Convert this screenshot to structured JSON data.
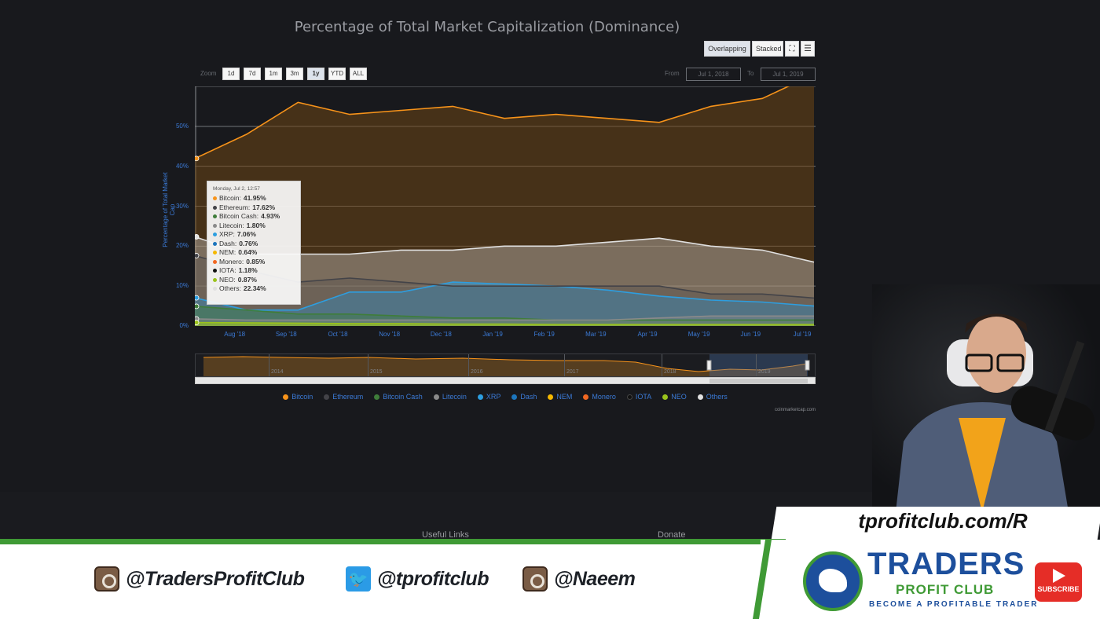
{
  "chart": {
    "title": "Percentage of Total Market Capitalization (Dominance)",
    "modes": [
      "Overlapping",
      "Stacked"
    ],
    "zoom_label": "Zoom",
    "zoom_buttons": [
      "1d",
      "7d",
      "1m",
      "3m",
      "1y",
      "YTD",
      "ALL"
    ],
    "from_label": "From",
    "from_value": "Jul 1, 2018",
    "to_label": "To",
    "to_value": "Jul 1, 2019",
    "y_title": "Percentage of Total Market Cap",
    "y_ticks": [
      "50%",
      "40%",
      "30%",
      "20%",
      "10%",
      "0%"
    ],
    "x_ticks": [
      "Aug '18",
      "Sep '18",
      "Oct '18",
      "Nov '18",
      "Dec '18",
      "Jan '19",
      "Feb '19",
      "Mar '19",
      "Apr '19",
      "May '19",
      "Jun '19",
      "Jul '19"
    ],
    "navigator_years": [
      "2014",
      "2015",
      "2016",
      "2017",
      "2018",
      "2019"
    ],
    "credit": "coinmarketcap.com",
    "tooltip": {
      "date": "Monday, Jul 2, 12:57",
      "rows": [
        {
          "name": "Bitcoin",
          "value": "41.95%",
          "color": "#f7931a"
        },
        {
          "name": "Ethereum",
          "value": "17.62%",
          "color": "#434348"
        },
        {
          "name": "Bitcoin Cash",
          "value": "4.93%",
          "color": "#3f7d3a"
        },
        {
          "name": "Litecoin",
          "value": "1.80%",
          "color": "#8a8a8a"
        },
        {
          "name": "XRP",
          "value": "7.06%",
          "color": "#2d9ee0"
        },
        {
          "name": "Dash",
          "value": "0.76%",
          "color": "#1c75bc"
        },
        {
          "name": "NEM",
          "value": "0.64%",
          "color": "#f5b800"
        },
        {
          "name": "Monero",
          "value": "0.85%",
          "color": "#f26822"
        },
        {
          "name": "IOTA",
          "value": "1.18%",
          "color": "#111111"
        },
        {
          "name": "NEO",
          "value": "0.87%",
          "color": "#9ac31c"
        },
        {
          "name": "Others",
          "value": "22.34%",
          "color": "#e0e0e0"
        }
      ]
    },
    "legend": [
      {
        "name": "Bitcoin",
        "color": "#f7931a"
      },
      {
        "name": "Ethereum",
        "color": "#434348"
      },
      {
        "name": "Bitcoin Cash",
        "color": "#3f7d3a"
      },
      {
        "name": "Litecoin",
        "color": "#8a8a8a"
      },
      {
        "name": "XRP",
        "color": "#2d9ee0"
      },
      {
        "name": "Dash",
        "color": "#1c75bc"
      },
      {
        "name": "NEM",
        "color": "#f5b800"
      },
      {
        "name": "Monero",
        "color": "#f26822"
      },
      {
        "name": "IOTA",
        "color": "#111111"
      },
      {
        "name": "NEO",
        "color": "#9ac31c"
      },
      {
        "name": "Others",
        "color": "#e0e0e0"
      }
    ]
  },
  "chart_data": {
    "type": "area",
    "title": "Percentage of Total Market Capitalization (Dominance)",
    "ylabel": "Percentage of Total Market Cap",
    "ylim": [
      0,
      60
    ],
    "x": [
      "Jul '18",
      "Aug '18",
      "Sep '18",
      "Oct '18",
      "Nov '18",
      "Dec '18",
      "Jan '19",
      "Feb '19",
      "Mar '19",
      "Apr '19",
      "May '19",
      "Jun '19",
      "Jul '19"
    ],
    "series": [
      {
        "name": "Bitcoin",
        "values": [
          41.95,
          48,
          56,
          53,
          54,
          55,
          52,
          53,
          52,
          51,
          55,
          57,
          63
        ]
      },
      {
        "name": "Others",
        "values": [
          22.34,
          18,
          18,
          18,
          19,
          19,
          20,
          20,
          21,
          22,
          20,
          19,
          16
        ]
      },
      {
        "name": "XRP",
        "values": [
          7.06,
          4,
          4,
          8.5,
          8.5,
          11,
          10.5,
          10,
          9,
          7.5,
          6.5,
          6,
          5
        ]
      },
      {
        "name": "Ethereum",
        "values": [
          17.62,
          14,
          11,
          12,
          11,
          10,
          10,
          10,
          10,
          10,
          8,
          8,
          7
        ]
      },
      {
        "name": "Bitcoin Cash",
        "values": [
          4.93,
          4,
          3,
          3,
          2.5,
          2,
          2,
          1.5,
          1.5,
          1.5,
          1.5,
          1.5,
          1.5
        ]
      },
      {
        "name": "Litecoin",
        "values": [
          1.8,
          1.5,
          1.5,
          1.5,
          1.5,
          1.5,
          1.5,
          1.5,
          1.5,
          2,
          2.5,
          2.5,
          2.5
        ]
      },
      {
        "name": "NEO",
        "values": [
          0.87,
          0.8,
          0.7,
          0.6,
          0.6,
          0.5,
          0.5,
          0.4,
          0.4,
          0.4,
          0.4,
          0.4,
          0.4
        ]
      }
    ],
    "legend": "bottom",
    "grid": true
  },
  "page": {
    "footer_links": [
      "Useful Links",
      "Donate"
    ]
  },
  "overlay": {
    "url": "tprofitclub.com/R",
    "socials": [
      {
        "icon": "instagram-icon",
        "handle": "@TradersProfitClub"
      },
      {
        "icon": "twitter-icon",
        "handle": "@tprofitclub"
      },
      {
        "icon": "instagram-icon",
        "handle": "@Naeem"
      }
    ],
    "logo_title": "TRADERS",
    "logo_subtitle": "PROFIT CLUB",
    "logo_tagline": "BECOME A PROFITABLE TRADER",
    "subscribe_label": "SUBSCRIBE"
  }
}
